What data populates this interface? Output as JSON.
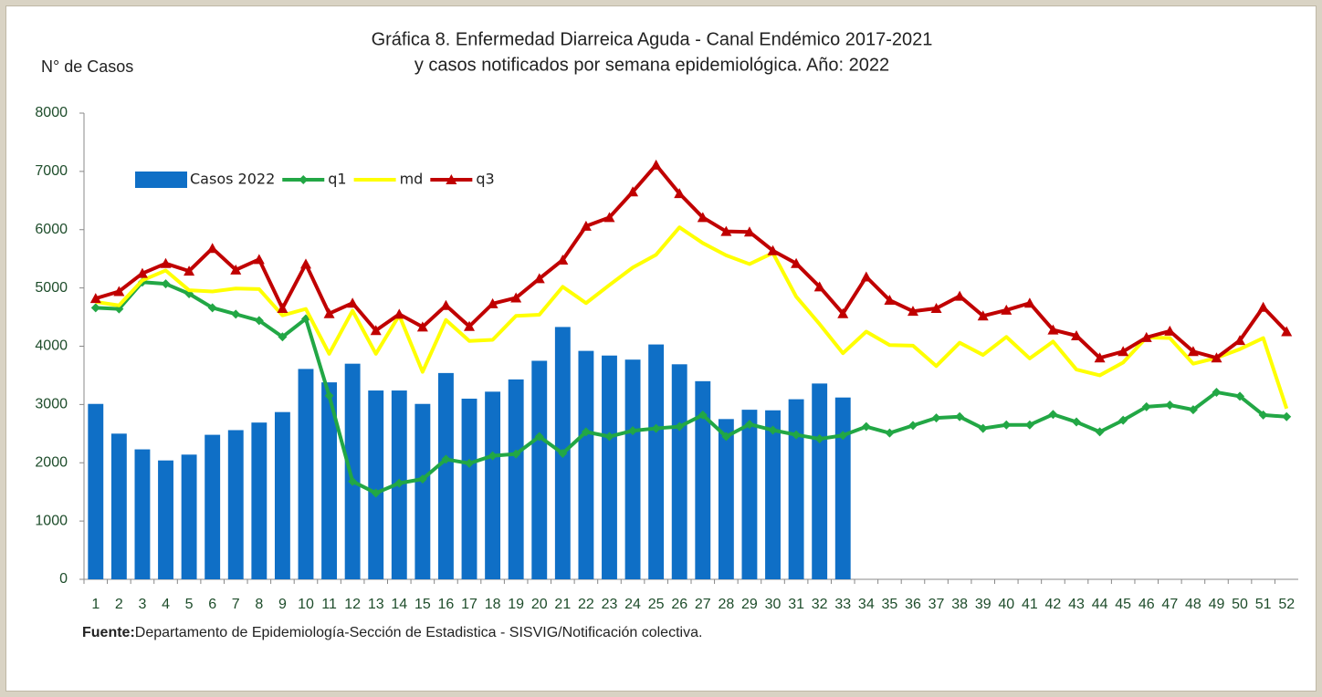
{
  "chart_data": {
    "type": "bar_line",
    "title": "Gráfica 8. Enfermedad Diarreica Aguda - Canal Endémico 2017-2021",
    "subtitle": "y casos notificados por semana epidemiológica.  Año: 2022",
    "y_label": "N° de Casos",
    "source_label": "Fuente:",
    "source": "Departamento de Epidemiología-Sección de Estadistica - SISVIG/Notificación colectiva.",
    "categories": [
      "1",
      "2",
      "3",
      "4",
      "5",
      "6",
      "7",
      "8",
      "9",
      "10",
      "11",
      "12",
      "13",
      "14",
      "15",
      "16",
      "17",
      "18",
      "19",
      "20",
      "21",
      "22",
      "23",
      "24",
      "25",
      "26",
      "27",
      "28",
      "29",
      "30",
      "31",
      "32",
      "33",
      "34",
      "35",
      "36",
      "37",
      "38",
      "39",
      "40",
      "41",
      "42",
      "43",
      "44",
      "45",
      "46",
      "47",
      "48",
      "49",
      "50",
      "51",
      "52"
    ],
    "ylim": [
      0,
      8000
    ],
    "yticks": [
      0,
      1000,
      2000,
      3000,
      4000,
      5000,
      6000,
      7000,
      8000
    ],
    "series": [
      {
        "name": "Casos 2022",
        "type": "bar",
        "color": "#0f6fc6",
        "values": [
          3010,
          2500,
          2230,
          2040,
          2140,
          2480,
          2560,
          2690,
          2870,
          3610,
          3380,
          3700,
          3240,
          3240,
          3010,
          3540,
          3100,
          3220,
          3430,
          3750,
          4330,
          3920,
          3840,
          3770,
          4030,
          3690,
          3400,
          2750,
          2910,
          2900,
          3090,
          3360,
          3120,
          null,
          null,
          null,
          null,
          null,
          null,
          null,
          null,
          null,
          null,
          null,
          null,
          null,
          null,
          null,
          null,
          null,
          null,
          null
        ]
      },
      {
        "name": "q1",
        "type": "line",
        "marker": "diamond",
        "color": "#22a745",
        "values": [
          4660,
          4640,
          5100,
          5070,
          4900,
          4660,
          4550,
          4440,
          4160,
          4470,
          3150,
          1680,
          1480,
          1650,
          1720,
          2060,
          1990,
          2120,
          2150,
          2450,
          2160,
          2530,
          2450,
          2550,
          2590,
          2620,
          2820,
          2450,
          2660,
          2560,
          2480,
          2410,
          2470,
          2620,
          2510,
          2640,
          2770,
          2790,
          2590,
          2650,
          2650,
          2830,
          2700,
          2530,
          2730,
          2960,
          2990,
          2910,
          3210,
          3140,
          2820,
          2790
        ]
      },
      {
        "name": "md",
        "type": "line",
        "marker": "none",
        "color": "#ffff00",
        "values": [
          4760,
          4700,
          5130,
          5300,
          4960,
          4940,
          4990,
          4980,
          4530,
          4640,
          3870,
          4610,
          3870,
          4530,
          3560,
          4450,
          4090,
          4110,
          4520,
          4540,
          5020,
          4740,
          5050,
          5350,
          5570,
          6040,
          5770,
          5560,
          5410,
          5600,
          4850,
          4380,
          3880,
          4250,
          4020,
          4010,
          3660,
          4060,
          3850,
          4160,
          3790,
          4080,
          3600,
          3500,
          3720,
          4150,
          4140,
          3700,
          3800,
          3950,
          4140,
          2930
        ]
      },
      {
        "name": "q3",
        "type": "line",
        "marker": "triangle",
        "color": "#c00000",
        "values": [
          4820,
          4940,
          5250,
          5420,
          5290,
          5680,
          5310,
          5490,
          4650,
          5410,
          4560,
          4740,
          4270,
          4550,
          4330,
          4700,
          4340,
          4730,
          4830,
          5160,
          5480,
          6060,
          6210,
          6650,
          7110,
          6620,
          6210,
          5970,
          5960,
          5640,
          5420,
          5020,
          4560,
          5190,
          4790,
          4600,
          4650,
          4860,
          4520,
          4620,
          4740,
          4280,
          4180,
          3800,
          3910,
          4150,
          4260,
          3910,
          3800,
          4100,
          4670,
          4250
        ]
      }
    ]
  }
}
